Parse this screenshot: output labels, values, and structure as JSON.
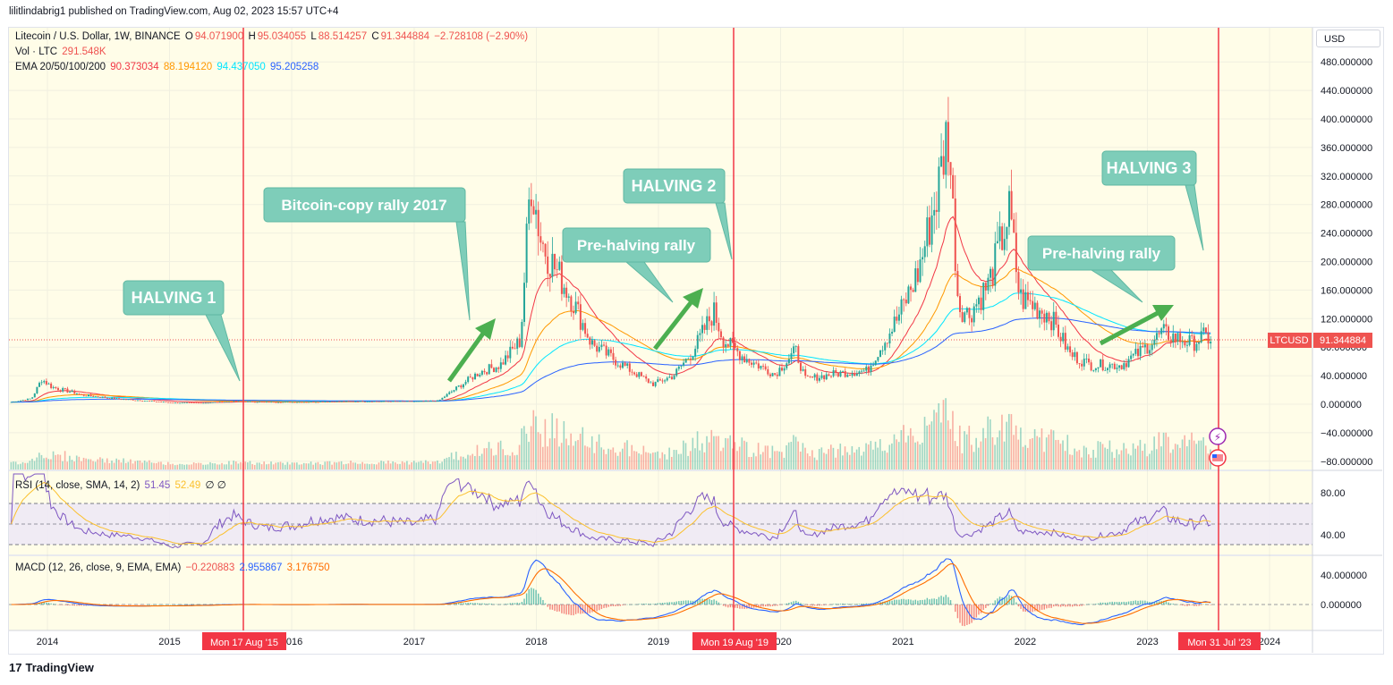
{
  "header": {
    "publisher_line": "lilitlindabrig1 published on TradingView.com, Aug 02, 2023 15:57 UTC+4"
  },
  "legend": {
    "symbol": "Litecoin / U.S. Dollar, 1W, BINANCE",
    "o_label": "O",
    "o": "94.071900",
    "h_label": "H",
    "h": "95.034055",
    "l_label": "L",
    "l": "88.514257",
    "c_label": "C",
    "c": "91.344884",
    "change": "−2.728108 (−2.90%)",
    "vol_label": "Vol · LTC",
    "vol": "291.548K",
    "ema_label": "EMA 20/50/100/200",
    "ema20": "90.373034",
    "ema50": "88.194120",
    "ema100": "94.437050",
    "ema200": "95.205258",
    "rsi_label": "RSI (14, close, SMA, 14, 2)",
    "rsi": "51.45",
    "rsi_ma": "52.49",
    "rsi_extra": "∅ ∅",
    "macd_label": "MACD (12, 26, close, 9, EMA, EMA)",
    "macd_hist": "−0.220883",
    "macd": "2.955867",
    "macd_signal": "3.176750"
  },
  "currency_button": "USD",
  "footer": {
    "brand": "TradingView",
    "logo_glyph": "17"
  },
  "colors": {
    "bg": "#ffffff",
    "plot_bg": "#fffde8",
    "up": "#26a69a",
    "down": "#ef5350",
    "ema20": "#f23645",
    "ema50": "#ff9800",
    "ema100": "#00e5ff",
    "ema200": "#2962ff",
    "rsi": "#7e57c2",
    "rsi_ma": "#fbc02d",
    "rsi_band": "#ede7f6",
    "macd": "#2962ff",
    "signal": "#ff6d00",
    "halving": "#f23645",
    "callout": "#7ecdb9",
    "arrow": "#4caf50"
  },
  "chart_data": {
    "type": "candlestick",
    "symbol": "LTCUSD",
    "interval": "1W",
    "price_axis": {
      "ticks": [
        "480.000000",
        "440.000000",
        "400.000000",
        "360.000000",
        "320.000000",
        "280.000000",
        "240.000000",
        "200.000000",
        "160.000000",
        "120.000000",
        "80.000000",
        "40.000000",
        "0.000000",
        "−40.000000",
        "−80.000000"
      ]
    },
    "time_axis": [
      "2014",
      "2015",
      "2016",
      "2017",
      "2018",
      "2019",
      "2020",
      "2021",
      "2022",
      "2023",
      "2024"
    ],
    "last_price_tag": {
      "symbol": "LTCUSD",
      "value": "91.344884"
    },
    "halvings": [
      {
        "date_label": "Mon 17 Aug '15",
        "date": "2015-08-17"
      },
      {
        "date_label": "Mon 19 Aug '19",
        "date": "2019-08-19"
      },
      {
        "date_label": "Mon 31 Jul '23",
        "date": "2023-07-31"
      }
    ],
    "weekly_close_approx": [
      [
        "2013-09",
        3
      ],
      [
        "2013-11",
        8
      ],
      [
        "2013-12",
        35
      ],
      [
        "2014-01",
        24
      ],
      [
        "2014-04",
        13
      ],
      [
        "2014-07",
        8
      ],
      [
        "2014-10",
        5
      ],
      [
        "2015-01",
        2
      ],
      [
        "2015-04",
        2
      ],
      [
        "2015-07",
        4
      ],
      [
        "2015-10",
        3
      ],
      [
        "2016-01",
        3
      ],
      [
        "2016-06",
        4
      ],
      [
        "2016-10",
        4
      ],
      [
        "2017-01",
        4
      ],
      [
        "2017-03",
        5
      ],
      [
        "2017-05",
        25
      ],
      [
        "2017-07",
        45
      ],
      [
        "2017-09",
        55
      ],
      [
        "2017-11",
        90
      ],
      [
        "2017-12",
        320
      ],
      [
        "2018-01",
        230
      ],
      [
        "2018-02",
        200
      ],
      [
        "2018-04",
        150
      ],
      [
        "2018-06",
        85
      ],
      [
        "2018-09",
        55
      ],
      [
        "2018-12",
        28
      ],
      [
        "2019-02",
        40
      ],
      [
        "2019-04",
        75
      ],
      [
        "2019-06",
        130
      ],
      [
        "2019-07",
        90
      ],
      [
        "2019-09",
        65
      ],
      [
        "2019-12",
        42
      ],
      [
        "2020-02",
        75
      ],
      [
        "2020-03",
        35
      ],
      [
        "2020-06",
        43
      ],
      [
        "2020-09",
        47
      ],
      [
        "2020-12",
        120
      ],
      [
        "2021-02",
        185
      ],
      [
        "2021-04",
        300
      ],
      [
        "2021-05",
        390
      ],
      [
        "2021-06",
        140
      ],
      [
        "2021-07",
        125
      ],
      [
        "2021-09",
        170
      ],
      [
        "2021-11",
        270
      ],
      [
        "2021-12",
        150
      ],
      [
        "2022-03",
        125
      ],
      [
        "2022-05",
        70
      ],
      [
        "2022-07",
        55
      ],
      [
        "2022-10",
        55
      ],
      [
        "2022-12",
        75
      ],
      [
        "2023-02",
        100
      ],
      [
        "2023-05",
        85
      ],
      [
        "2023-06",
        95
      ],
      [
        "2023-07",
        91
      ]
    ],
    "indicators": {
      "ema": [
        "EMA 20",
        "EMA 50",
        "EMA 100",
        "EMA 200"
      ],
      "rsi_levels": [
        30,
        50,
        70
      ],
      "rsi_ticks": [
        "80.00",
        "40.00"
      ],
      "macd_ticks": [
        "40.000000",
        "0.000000"
      ]
    },
    "annotations": [
      {
        "text": "HALVING 1"
      },
      {
        "text": "Bitcoin-copy rally 2017"
      },
      {
        "text": "HALVING 2"
      },
      {
        "text": "Pre-halving rally"
      },
      {
        "text": "HALVING 3"
      },
      {
        "text": "Pre-halving rally"
      }
    ]
  }
}
